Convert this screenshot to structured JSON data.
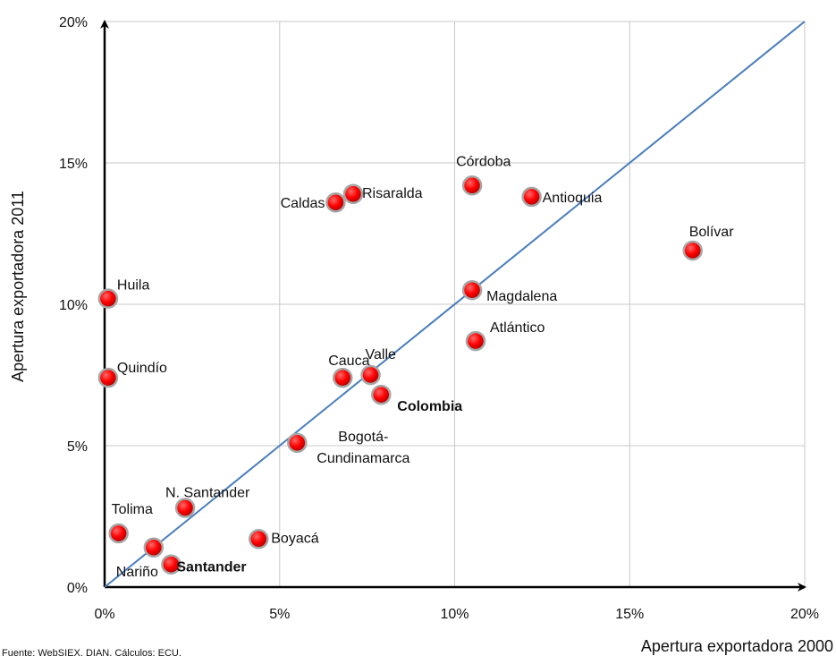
{
  "chart_data": {
    "type": "scatter",
    "title": "",
    "xlabel": "Apertura exportadora 2000",
    "ylabel": "Apertura exportadora 2011",
    "xlim": [
      0,
      20
    ],
    "ylim": [
      0,
      20
    ],
    "x_ticks": [
      "0%",
      "5%",
      "10%",
      "15%",
      "20%"
    ],
    "y_ticks": [
      "0%",
      "5%",
      "10%",
      "15%",
      "20%"
    ],
    "grid": true,
    "legend": "none",
    "reference_line": {
      "x": [
        0,
        20
      ],
      "y": [
        0,
        20
      ],
      "color": "#4a7ebb"
    },
    "marker_color": "#ff0000",
    "source": "Fuente: WebSIEX, DIAN. Cálculos: ECU.",
    "points": [
      {
        "label": "Córdoba",
        "x": 10.5,
        "y": 14.2
      },
      {
        "label": "Antioquia",
        "x": 12.2,
        "y": 13.8
      },
      {
        "label": "Risaralda",
        "x": 7.1,
        "y": 13.9
      },
      {
        "label": "Caldas",
        "x": 6.6,
        "y": 13.6
      },
      {
        "label": "Bolívar",
        "x": 16.8,
        "y": 11.9
      },
      {
        "label": "Huila",
        "x": 0.1,
        "y": 10.2
      },
      {
        "label": "Magdalena",
        "x": 10.5,
        "y": 10.5
      },
      {
        "label": "Atlántico",
        "x": 10.6,
        "y": 8.7
      },
      {
        "label": "Quindío",
        "x": 0.1,
        "y": 7.4
      },
      {
        "label": "Cauca",
        "x": 6.8,
        "y": 7.4
      },
      {
        "label": "Valle",
        "x": 7.6,
        "y": 7.5
      },
      {
        "label": "Colombia",
        "x": 7.9,
        "y": 6.8,
        "bold": true
      },
      {
        "label": "Bogotá-Cundinamarca",
        "x": 5.5,
        "y": 5.1
      },
      {
        "label": "N. Santander",
        "x": 2.3,
        "y": 2.8
      },
      {
        "label": "Tolima",
        "x": 0.4,
        "y": 1.9
      },
      {
        "label": "Nariño",
        "x": 1.4,
        "y": 1.4
      },
      {
        "label": "Santander",
        "x": 1.9,
        "y": 0.8,
        "bold": true
      },
      {
        "label": "Boyacá",
        "x": 4.4,
        "y": 1.7
      }
    ]
  }
}
